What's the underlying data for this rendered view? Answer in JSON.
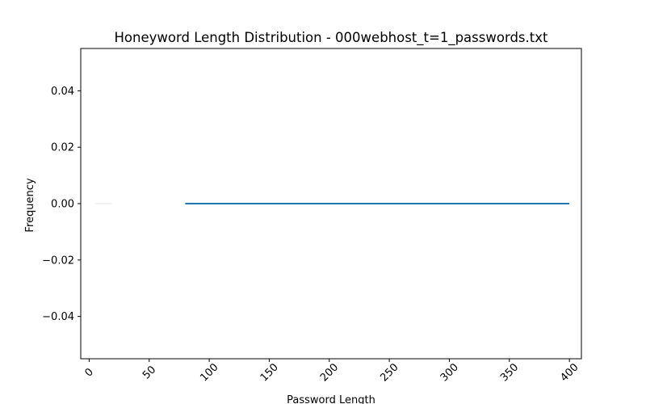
{
  "chart_data": {
    "type": "bar",
    "title": "Honeyword Length Distribution - 000webhost_t=1_passwords.txt",
    "xlabel": "Password Length",
    "ylabel": "Frequency",
    "xlim": [
      -7,
      410
    ],
    "ylim": [
      -0.055,
      0.055
    ],
    "xticks": [
      "0",
      "50",
      "100",
      "150",
      "200",
      "250",
      "300",
      "350",
      "400"
    ],
    "yticks": [
      "0.04",
      "0.02",
      "0.00",
      "−0.02",
      "−0.04"
    ],
    "xtick_values": [
      0,
      50,
      100,
      150,
      200,
      250,
      300,
      350,
      400
    ],
    "ytick_values": [
      0.04,
      0.02,
      0.0,
      -0.02,
      -0.04
    ],
    "grid": false,
    "legend": "none",
    "series": [
      {
        "x_start": 80,
        "x_end": 400,
        "values": [
          0,
          0
        ],
        "color": "#1f77b4"
      }
    ],
    "faint_segments": [
      {
        "x_start": 5,
        "x_end": 19,
        "value": 0,
        "color": "#eeeeee"
      }
    ]
  }
}
